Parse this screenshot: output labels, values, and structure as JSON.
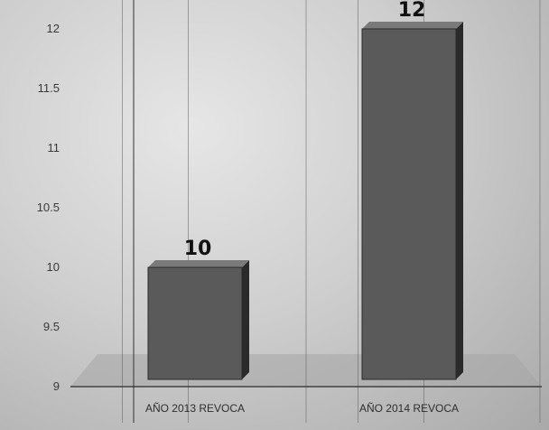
{
  "chart_data": {
    "type": "bar",
    "title": "",
    "xlabel": "",
    "ylabel": "",
    "categories": [
      "AÑO 2013 REVOCA",
      "AÑO 2014 REVOCA"
    ],
    "values": [
      10,
      12
    ],
    "data_labels": [
      "10",
      "12"
    ],
    "ylim": [
      9,
      12
    ],
    "yticks": [
      "9",
      "9.5",
      "10",
      "10.5",
      "11",
      "11.5",
      "12"
    ],
    "grid": "vertical-lines",
    "legend": "none",
    "style": "3d-column",
    "colors": {
      "bar": "#5a5a5a",
      "bar_side": "#2a2a2a",
      "bar_top": "#7a7a7a"
    }
  }
}
